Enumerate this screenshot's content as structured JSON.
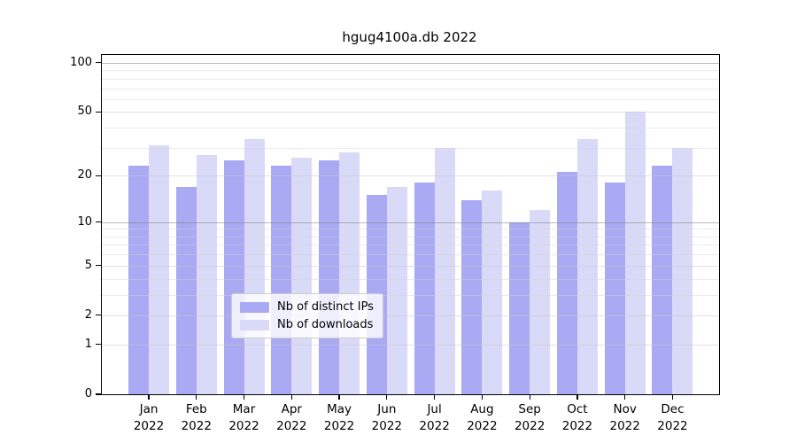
{
  "chart_data": {
    "type": "bar",
    "title": "hgug4100a.db 2022",
    "categories": [
      "Jan",
      "Feb",
      "Mar",
      "Apr",
      "May",
      "Jun",
      "Jul",
      "Aug",
      "Sep",
      "Oct",
      "Nov",
      "Dec"
    ],
    "year": "2022",
    "series": [
      {
        "name": "Nb of distinct IPs",
        "color": "#a9a9f4",
        "values": [
          23,
          17,
          25,
          23,
          25,
          15,
          18,
          14,
          10,
          21,
          18,
          23
        ]
      },
      {
        "name": "Nb of downloads",
        "color": "#d9d9f8",
        "values": [
          31,
          27,
          34,
          26,
          28,
          17,
          30,
          16,
          12,
          34,
          50,
          30
        ]
      }
    ],
    "y_axis": {
      "scale": "log10(1+x)",
      "tick_values": [
        0,
        1,
        2,
        5,
        10,
        20,
        50,
        100
      ],
      "minor_gridlines": [
        1,
        2,
        3,
        4,
        5,
        6,
        7,
        8,
        9,
        10,
        20,
        30,
        40,
        50,
        60,
        70,
        80,
        90,
        100
      ],
      "decade_gridlines": [
        10,
        100
      ],
      "ylim_top_transformed": 2.052
    },
    "grid": "on",
    "legend": {
      "position": "inside-bottom-center",
      "entries": [
        "Nb of distinct IPs",
        "Nb of downloads"
      ]
    }
  }
}
